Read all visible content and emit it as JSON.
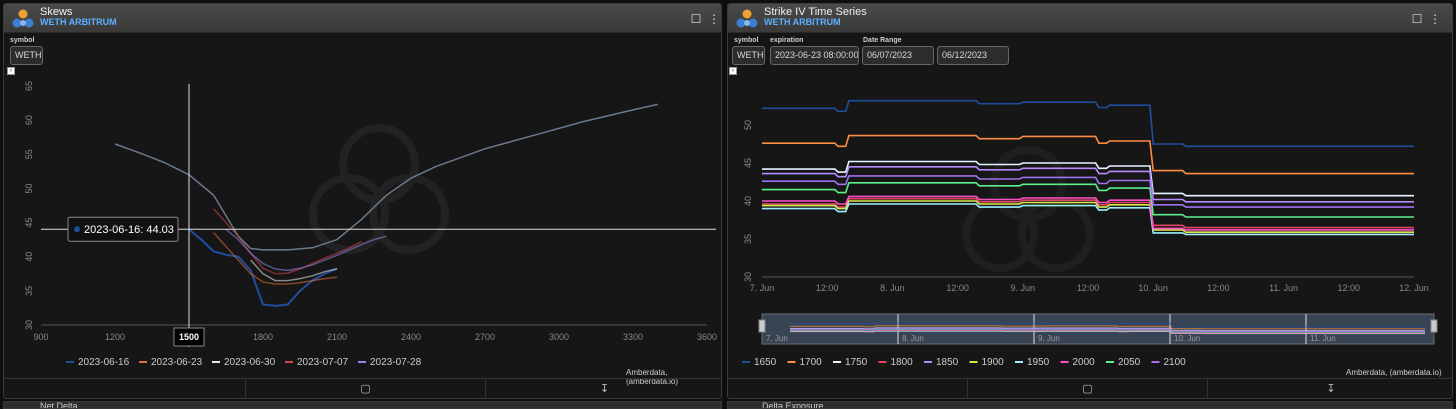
{
  "left_panel": {
    "title": "Skews",
    "subtitle": "WETH ARBITRUM",
    "symbol_label": "symbol",
    "symbol_value": "WETH",
    "tooltip": "2023-06-16: 44.03",
    "crosshair_x_label": "1500",
    "credit": "Amberdata, (amberdata.io)"
  },
  "right_panel": {
    "title": "Strike IV Time Series",
    "subtitle": "WETH ARBITRUM",
    "symbol_label": "symbol",
    "symbol_value": "WETH",
    "expiration_label": "expiration",
    "expiration_value": "2023-06-23 08:00:00",
    "date_range_label": "Date Range",
    "date_from": "06/07/2023",
    "date_to": "06/12/2023",
    "credit": "Amberdata, (amberdata.io)",
    "navigator_labels": [
      "7. Jun",
      "8. Jun",
      "9. Jun",
      "10. Jun",
      "11. Jun"
    ]
  },
  "bottom_left_title": "Net Delta",
  "bottom_right_title": "Delta Exposure",
  "colors": {
    "2023-06-16": "#1f4e9e",
    "2023-06-23": "#e0703a",
    "2023-06-30": "#e8e8e8",
    "2023-07-07": "#d64550",
    "2023-07-28": "#8c8cf0",
    "1650": "#1f4e9e",
    "1700": "#ff8c42",
    "1750": "#e8f4ff",
    "1800": "#e04862",
    "1850": "#b48cff",
    "1900": "#d6e84a",
    "1950": "#9af0ff",
    "2000": "#ff4fc8",
    "2050": "#5af08a",
    "2100": "#a070f0"
  },
  "chart_data": [
    {
      "type": "line",
      "x_ticks": [
        900,
        1200,
        1500,
        1800,
        2100,
        2400,
        2700,
        3000,
        3300,
        3600
      ],
      "y_ticks": [
        30,
        35,
        40,
        45,
        50,
        55,
        60,
        65
      ],
      "xlim": [
        900,
        3600
      ],
      "ylim": [
        30,
        65
      ],
      "legend_position": "bottom",
      "series": [
        {
          "name": "2023-06-16",
          "x": [
            1500,
            1550,
            1600,
            1650,
            1700,
            1750,
            1800,
            1850,
            1900,
            1950,
            2000,
            2050,
            2100
          ],
          "y": [
            44.0,
            42.5,
            40.8,
            40.3,
            40.0,
            38.0,
            33.0,
            32.8,
            33.0,
            35.0,
            36.5,
            37.5,
            38.3
          ]
        },
        {
          "name": "",
          "x": [
            1200,
            1300,
            1400,
            1500,
            1600,
            1650,
            1700,
            1750,
            1800,
            1900,
            2000,
            2100,
            2200,
            2300,
            2400,
            2500,
            2700,
            2900,
            3100,
            3300,
            3400
          ],
          "y": [
            56.5,
            55.2,
            53.8,
            52.0,
            49.0,
            46.0,
            43.0,
            41.2,
            41.0,
            41.0,
            41.3,
            42.5,
            45.5,
            49.0,
            51.5,
            53.2,
            55.8,
            57.8,
            59.8,
            61.5,
            62.3
          ]
        },
        {
          "name": "2023-06-23",
          "x": [
            1600,
            1650,
            1700,
            1750,
            1800,
            1850,
            1900,
            1950,
            2000,
            2050,
            2100
          ],
          "y": [
            43.5,
            41.5,
            39.5,
            37.5,
            36.3,
            36.0,
            36.0,
            36.2,
            36.5,
            36.8,
            37.0
          ]
        },
        {
          "name": "2023-06-30",
          "x": [
            1750,
            1800,
            1850,
            1900,
            1950,
            2000,
            2050,
            2100
          ],
          "y": [
            39.5,
            37.5,
            36.5,
            36.5,
            36.8,
            37.2,
            37.8,
            38.2
          ]
        },
        {
          "name": "2023-07-07",
          "x": [
            1600,
            1650,
            1700,
            1750,
            1800,
            1850,
            1900,
            1950,
            2000,
            2050,
            2100,
            2150,
            2200
          ],
          "y": [
            47.0,
            45.0,
            43.0,
            40.5,
            38.3,
            37.5,
            37.6,
            38.2,
            39.0,
            39.8,
            40.5,
            41.3,
            42.2
          ]
        },
        {
          "name": "2023-07-28",
          "x": [
            1650,
            1700,
            1750,
            1800,
            1850,
            1900,
            1950,
            2000,
            2050,
            2100,
            2150,
            2200,
            2250,
            2300
          ],
          "y": [
            44.0,
            42.5,
            40.5,
            39.0,
            38.2,
            38.0,
            38.3,
            38.8,
            39.5,
            40.2,
            41.0,
            41.8,
            42.5,
            43.0
          ]
        }
      ],
      "crosshair": {
        "x": 1500,
        "y": 44.03
      }
    },
    {
      "type": "line",
      "x_ticks": [
        "7. Jun",
        "12:00",
        "8. Jun",
        "12:00",
        "9. Jun",
        "12:00",
        "10. Jun",
        "12:00",
        "11. Jun",
        "12:00",
        "12. Jun"
      ],
      "y_ticks": [
        30,
        35,
        40,
        45,
        50
      ],
      "xlim": [
        0,
        120
      ],
      "ylim": [
        30,
        55
      ],
      "legend_position": "bottom",
      "x_unit": "hours since 7. Jun",
      "series": [
        {
          "name": "1650",
          "levels": [
            52.2,
            51.8,
            53.2,
            52.8,
            53.0,
            52.3,
            52.6,
            47.5,
            47.2
          ]
        },
        {
          "name": "1700",
          "levels": [
            47.6,
            47.2,
            48.6,
            48.2,
            48.5,
            47.6,
            47.9,
            44.0,
            43.6
          ]
        },
        {
          "name": "1750",
          "levels": [
            44.2,
            43.8,
            45.2,
            44.8,
            45.0,
            44.3,
            44.6,
            41.0,
            40.7
          ]
        },
        {
          "name": "1800",
          "levels": [
            39.6,
            39.2,
            40.3,
            39.9,
            40.1,
            39.5,
            39.8,
            36.8,
            36.5
          ]
        },
        {
          "name": "1850",
          "levels": [
            43.6,
            43.2,
            44.5,
            44.1,
            44.3,
            43.6,
            43.9,
            40.2,
            39.9
          ]
        },
        {
          "name": "1900",
          "levels": [
            39.4,
            39.0,
            40.0,
            39.6,
            39.8,
            39.2,
            39.5,
            36.2,
            35.9
          ]
        },
        {
          "name": "1950",
          "levels": [
            39.0,
            38.6,
            39.6,
            39.2,
            39.4,
            38.8,
            39.1,
            35.8,
            35.6
          ]
        },
        {
          "name": "2000",
          "levels": [
            40.0,
            39.6,
            40.6,
            40.2,
            40.4,
            39.8,
            40.1,
            36.4,
            36.2
          ]
        },
        {
          "name": "2050",
          "levels": [
            41.5,
            41.1,
            42.4,
            42.0,
            42.2,
            41.4,
            41.7,
            38.2,
            37.9
          ]
        },
        {
          "name": "2100",
          "levels": [
            42.6,
            42.2,
            43.3,
            42.9,
            43.1,
            42.3,
            42.7,
            39.5,
            39.2
          ]
        }
      ]
    }
  ]
}
